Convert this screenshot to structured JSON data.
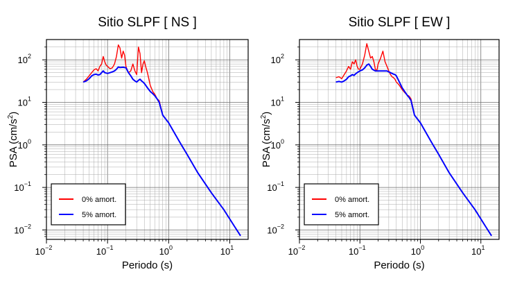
{
  "chart_data": [
    {
      "type": "line",
      "title": "Sitio SLPF [ NS ]",
      "xlabel": "Periodo (s)",
      "ylabel_base": "PSA (cm/s",
      "ylabel_sup": "2",
      "ylabel_close": ")",
      "xscale": "log",
      "yscale": "log",
      "xlim": [
        0.01,
        20
      ],
      "ylim": [
        0.006,
        300
      ],
      "grid": true,
      "legend_position": "bottom-left",
      "x_ticks": [
        {
          "base": "10",
          "exp": "−2",
          "v": 0.01
        },
        {
          "base": "10",
          "exp": "−1",
          "v": 0.1
        },
        {
          "base": "10",
          "exp": "0",
          "v": 1
        },
        {
          "base": "10",
          "exp": "1",
          "v": 10
        }
      ],
      "y_ticks": [
        {
          "base": "10",
          "exp": "−2",
          "v": 0.01
        },
        {
          "base": "10",
          "exp": "−1",
          "v": 0.1
        },
        {
          "base": "10",
          "exp": "0",
          "v": 1
        },
        {
          "base": "10",
          "exp": "1",
          "v": 10
        },
        {
          "base": "10",
          "exp": "2",
          "v": 100
        }
      ],
      "series": [
        {
          "name": "0% amort.",
          "color": "#ff0000",
          "x": [
            0.04,
            0.045,
            0.05,
            0.055,
            0.06,
            0.065,
            0.07,
            0.075,
            0.08,
            0.085,
            0.09,
            0.095,
            0.1,
            0.11,
            0.12,
            0.13,
            0.14,
            0.15,
            0.16,
            0.17,
            0.18,
            0.19,
            0.2,
            0.22,
            0.24,
            0.26,
            0.28,
            0.3,
            0.32,
            0.34,
            0.36,
            0.38,
            0.4,
            0.42,
            0.45,
            0.5,
            0.55,
            0.6,
            0.65,
            0.7,
            0.8,
            1,
            1.5,
            2,
            3,
            5,
            8,
            12,
            15
          ],
          "y": [
            30,
            35,
            42,
            50,
            58,
            62,
            55,
            70,
            80,
            120,
            90,
            75,
            70,
            62,
            65,
            80,
            120,
            225,
            190,
            110,
            160,
            130,
            70,
            50,
            55,
            80,
            55,
            45,
            200,
            140,
            50,
            80,
            95,
            70,
            50,
            25,
            18,
            15,
            12,
            11,
            5,
            3.3,
            1.2,
            0.6,
            0.22,
            0.075,
            0.03,
            0.012,
            0.0073
          ]
        },
        {
          "name": "5% amort.",
          "color": "#0000ff",
          "x": [
            0.04,
            0.045,
            0.05,
            0.055,
            0.06,
            0.065,
            0.07,
            0.075,
            0.08,
            0.085,
            0.09,
            0.1,
            0.11,
            0.12,
            0.13,
            0.14,
            0.15,
            0.16,
            0.18,
            0.2,
            0.22,
            0.24,
            0.26,
            0.28,
            0.3,
            0.32,
            0.34,
            0.36,
            0.38,
            0.4,
            0.45,
            0.5,
            0.55,
            0.6,
            0.65,
            0.7,
            0.8,
            1,
            1.5,
            2,
            3,
            5,
            8,
            12,
            15
          ],
          "y": [
            30,
            32,
            36,
            42,
            45,
            46,
            44,
            45,
            50,
            55,
            50,
            48,
            50,
            52,
            55,
            60,
            68,
            66,
            67,
            65,
            50,
            42,
            35,
            32,
            30,
            33,
            35,
            32,
            30,
            28,
            22,
            18,
            16,
            14,
            12,
            10,
            5,
            3.3,
            1.2,
            0.6,
            0.22,
            0.075,
            0.03,
            0.012,
            0.0073
          ]
        }
      ]
    },
    {
      "type": "line",
      "title": "Sitio SLPF [ EW ]",
      "xlabel": "Periodo (s)",
      "ylabel_base": "PSA (cm/s",
      "ylabel_sup": "2",
      "ylabel_close": ")",
      "xscale": "log",
      "yscale": "log",
      "xlim": [
        0.01,
        20
      ],
      "ylim": [
        0.006,
        300
      ],
      "grid": true,
      "legend_position": "bottom-left",
      "x_ticks": [
        {
          "base": "10",
          "exp": "−2",
          "v": 0.01
        },
        {
          "base": "10",
          "exp": "−1",
          "v": 0.1
        },
        {
          "base": "10",
          "exp": "0",
          "v": 1
        },
        {
          "base": "10",
          "exp": "1",
          "v": 10
        }
      ],
      "y_ticks": [
        {
          "base": "10",
          "exp": "−2",
          "v": 0.01
        },
        {
          "base": "10",
          "exp": "−1",
          "v": 0.1
        },
        {
          "base": "10",
          "exp": "0",
          "v": 1
        },
        {
          "base": "10",
          "exp": "1",
          "v": 10
        },
        {
          "base": "10",
          "exp": "2",
          "v": 100
        }
      ],
      "series": [
        {
          "name": "0% amort.",
          "color": "#ff0000",
          "x": [
            0.04,
            0.045,
            0.05,
            0.055,
            0.06,
            0.065,
            0.07,
            0.075,
            0.08,
            0.085,
            0.09,
            0.095,
            0.1,
            0.11,
            0.12,
            0.13,
            0.14,
            0.15,
            0.16,
            0.17,
            0.18,
            0.19,
            0.2,
            0.22,
            0.24,
            0.26,
            0.28,
            0.3,
            0.32,
            0.34,
            0.36,
            0.38,
            0.4,
            0.42,
            0.45,
            0.5,
            0.55,
            0.6,
            0.65,
            0.7,
            0.8,
            1,
            1.5,
            2,
            3,
            5,
            8,
            12,
            15
          ],
          "y": [
            38,
            40,
            36,
            45,
            55,
            70,
            60,
            90,
            80,
            100,
            70,
            60,
            60,
            80,
            130,
            240,
            160,
            110,
            120,
            90,
            60,
            55,
            80,
            110,
            160,
            90,
            70,
            55,
            45,
            40,
            38,
            35,
            30,
            28,
            25,
            20,
            17,
            15,
            14,
            12,
            5,
            3.3,
            1.2,
            0.6,
            0.22,
            0.075,
            0.03,
            0.012,
            0.0073
          ]
        },
        {
          "name": "5% amort.",
          "color": "#0000ff",
          "x": [
            0.04,
            0.045,
            0.05,
            0.055,
            0.06,
            0.065,
            0.07,
            0.075,
            0.08,
            0.085,
            0.09,
            0.1,
            0.11,
            0.12,
            0.13,
            0.14,
            0.15,
            0.16,
            0.18,
            0.2,
            0.22,
            0.24,
            0.26,
            0.28,
            0.3,
            0.32,
            0.34,
            0.36,
            0.38,
            0.4,
            0.45,
            0.5,
            0.55,
            0.6,
            0.65,
            0.7,
            0.8,
            1,
            1.5,
            2,
            3,
            5,
            8,
            12,
            15
          ],
          "y": [
            30,
            31,
            30,
            32,
            35,
            40,
            42,
            45,
            43,
            47,
            50,
            55,
            58,
            65,
            75,
            80,
            70,
            60,
            55,
            55,
            55,
            55,
            55,
            55,
            52,
            50,
            48,
            46,
            45,
            42,
            30,
            22,
            18,
            15,
            13,
            11,
            5,
            3.3,
            1.2,
            0.6,
            0.22,
            0.075,
            0.03,
            0.012,
            0.0073
          ]
        }
      ]
    }
  ]
}
